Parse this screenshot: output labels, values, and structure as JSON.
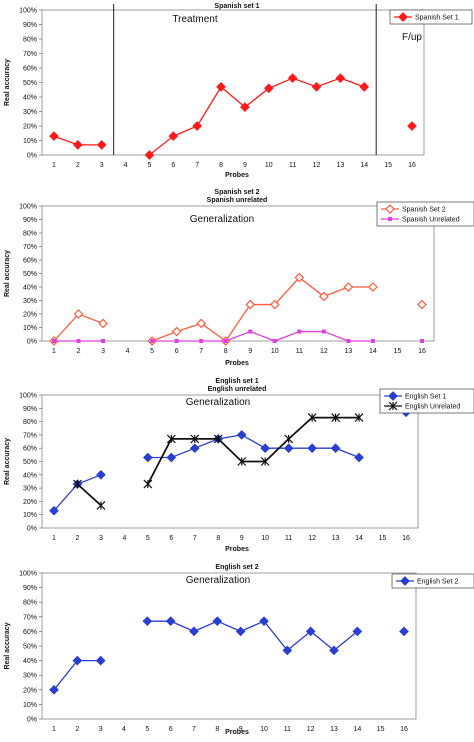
{
  "chart_data": [
    {
      "type": "line",
      "title": "Spanish set 1",
      "subtitle": "",
      "xlabel": "Probes",
      "ylabel": "Real accuracy",
      "x": [
        1,
        2,
        3,
        4,
        5,
        6,
        7,
        8,
        9,
        10,
        11,
        12,
        13,
        14,
        15,
        16
      ],
      "xlim": [
        1,
        16
      ],
      "ylim": [
        0,
        100
      ],
      "yticks": [
        "0%",
        "10%",
        "20%",
        "30%",
        "40%",
        "50%",
        "60%",
        "70%",
        "80%",
        "90%",
        "100%"
      ],
      "annotations": [
        "Treatment",
        "F/up"
      ],
      "phase_lines_at": [
        3.5,
        14.5
      ],
      "legend": "top-right",
      "grid": false,
      "series": [
        {
          "name": "Spanish Set 1",
          "color": "#ff1a1a",
          "marker": "diamond-filled",
          "segments": [
            [
              [
                1,
                13
              ],
              [
                2,
                7
              ],
              [
                3,
                7
              ]
            ],
            [
              [
                5,
                0
              ],
              [
                6,
                13
              ],
              [
                7,
                20
              ],
              [
                8,
                47
              ],
              [
                9,
                33
              ],
              [
                10,
                46
              ],
              [
                11,
                53
              ],
              [
                12,
                47
              ],
              [
                13,
                53
              ],
              [
                14,
                47
              ]
            ],
            [
              [
                16,
                20
              ]
            ]
          ]
        }
      ]
    },
    {
      "type": "line",
      "title": "Spanish set 2",
      "subtitle": "Spanish unrelated",
      "xlabel": "Probes",
      "ylabel": "Real accuracy",
      "x": [
        1,
        2,
        3,
        4,
        5,
        6,
        7,
        8,
        9,
        10,
        11,
        12,
        13,
        14,
        15,
        16
      ],
      "xlim": [
        1,
        16
      ],
      "ylim": [
        0,
        100
      ],
      "yticks": [
        "0%",
        "10%",
        "20%",
        "30%",
        "40%",
        "50%",
        "60%",
        "70%",
        "80%",
        "90%",
        "100%"
      ],
      "annotations": [
        "Generalization"
      ],
      "phase_lines_at": [],
      "legend": "top-right",
      "grid": false,
      "series": [
        {
          "name": "Spanish Set 2",
          "color": "#ff5a3c",
          "marker": "diamond-open",
          "segments": [
            [
              [
                1,
                0
              ],
              [
                2,
                20
              ],
              [
                3,
                13
              ]
            ],
            [
              [
                5,
                0
              ],
              [
                6,
                7
              ],
              [
                7,
                13
              ],
              [
                8,
                0
              ],
              [
                9,
                27
              ],
              [
                10,
                27
              ],
              [
                11,
                47
              ],
              [
                12,
                33
              ],
              [
                13,
                40
              ],
              [
                14,
                40
              ]
            ],
            [
              [
                16,
                27
              ]
            ]
          ]
        },
        {
          "name": "Spanish Unrelated",
          "color": "#e040e0",
          "marker": "square",
          "segments": [
            [
              [
                1,
                0
              ],
              [
                2,
                0
              ],
              [
                3,
                0
              ]
            ],
            [
              [
                5,
                0
              ],
              [
                6,
                0
              ],
              [
                7,
                0
              ],
              [
                8,
                0
              ],
              [
                9,
                7
              ],
              [
                10,
                0
              ],
              [
                11,
                7
              ],
              [
                12,
                7
              ],
              [
                13,
                0
              ],
              [
                14,
                0
              ]
            ],
            [
              [
                16,
                0
              ]
            ]
          ]
        }
      ]
    },
    {
      "type": "line",
      "title": "English set 1",
      "subtitle": "English unrelated",
      "xlabel": "Probes",
      "ylabel": "Real accuracy",
      "x": [
        1,
        2,
        3,
        4,
        5,
        6,
        7,
        8,
        9,
        10,
        11,
        12,
        13,
        14,
        15,
        16
      ],
      "xlim": [
        1,
        16
      ],
      "ylim": [
        0,
        100
      ],
      "yticks": [
        "0%",
        "10%",
        "20%",
        "30%",
        "40%",
        "50%",
        "60%",
        "70%",
        "80%",
        "90%",
        "100%"
      ],
      "annotations": [
        "Generalization"
      ],
      "phase_lines_at": [],
      "legend": "top-right",
      "grid": false,
      "series": [
        {
          "name": "English Set 1",
          "color": "#2a3fd0",
          "marker": "diamond-filled",
          "segments": [
            [
              [
                1,
                13
              ],
              [
                2,
                33
              ],
              [
                3,
                40
              ]
            ],
            [
              [
                5,
                53
              ],
              [
                6,
                53
              ],
              [
                7,
                60
              ],
              [
                8,
                67
              ],
              [
                9,
                70
              ],
              [
                10,
                60
              ],
              [
                11,
                60
              ],
              [
                12,
                60
              ],
              [
                13,
                60
              ],
              [
                14,
                53
              ]
            ],
            [
              [
                16,
                87
              ]
            ]
          ]
        },
        {
          "name": "English Unrelated",
          "color": "#111111",
          "marker": "star",
          "segments": [
            [
              [
                2,
                33
              ],
              [
                3,
                17
              ]
            ],
            [
              [
                5,
                33
              ],
              [
                6,
                67
              ],
              [
                7,
                67
              ],
              [
                8,
                67
              ],
              [
                9,
                50
              ],
              [
                10,
                50
              ],
              [
                11,
                67
              ],
              [
                12,
                83
              ],
              [
                13,
                83
              ],
              [
                14,
                83
              ]
            ]
          ]
        }
      ]
    },
    {
      "type": "line",
      "title": "English set 2",
      "subtitle": "",
      "xlabel": "Probes",
      "ylabel": "Real accuracy",
      "x": [
        1,
        2,
        3,
        4,
        5,
        6,
        7,
        8,
        9,
        10,
        11,
        12,
        13,
        14,
        15,
        16
      ],
      "xlim": [
        1,
        16
      ],
      "ylim": [
        0,
        100
      ],
      "yticks": [
        "0%",
        "10%",
        "20%",
        "30%",
        "40%",
        "50%",
        "60%",
        "70%",
        "80%",
        "90%",
        "100%"
      ],
      "annotations": [
        "Generalization"
      ],
      "phase_lines_at": [],
      "legend": "top-right",
      "grid": false,
      "series": [
        {
          "name": "English Set 2",
          "color": "#2a3fd0",
          "marker": "diamond-filled",
          "segments": [
            [
              [
                1,
                20
              ],
              [
                2,
                40
              ],
              [
                3,
                40
              ]
            ],
            [
              [
                5,
                67
              ],
              [
                6,
                67
              ],
              [
                7,
                60
              ],
              [
                8,
                67
              ],
              [
                9,
                60
              ],
              [
                10,
                67
              ],
              [
                11,
                47
              ],
              [
                12,
                60
              ],
              [
                13,
                47
              ],
              [
                14,
                60
              ]
            ],
            [
              [
                16,
                60
              ]
            ]
          ]
        }
      ]
    }
  ]
}
